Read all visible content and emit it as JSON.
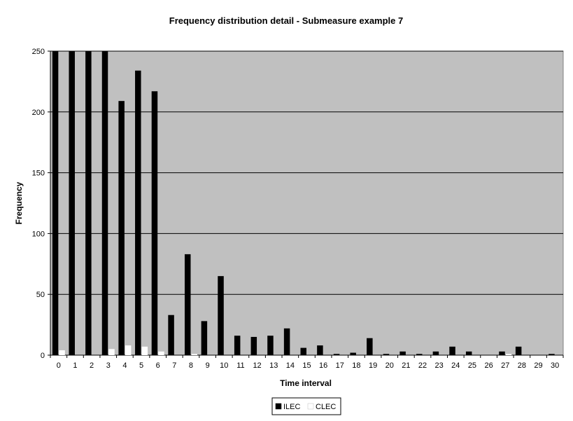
{
  "chart_data": {
    "type": "bar",
    "title": "Frequency distribution detail - Submeasure example 7",
    "xlabel": "Time interval",
    "ylabel": "Frequency",
    "ylim": [
      0,
      250
    ],
    "yticks": [
      0,
      50,
      100,
      150,
      200,
      250
    ],
    "grid": true,
    "legend_position": "bottom-center",
    "categories": [
      "0",
      "1",
      "2",
      "3",
      "4",
      "5",
      "6",
      "7",
      "8",
      "9",
      "10",
      "11",
      "12",
      "13",
      "14",
      "15",
      "16",
      "17",
      "18",
      "19",
      "20",
      "21",
      "22",
      "23",
      "24",
      "25",
      "26",
      "27",
      "28",
      "29",
      "30"
    ],
    "series": [
      {
        "name": "ILEC",
        "color": "#000000",
        "values": [
          251,
          251,
          251,
          251,
          209,
          234,
          217,
          33,
          83,
          28,
          65,
          16,
          15,
          16,
          22,
          6,
          8,
          1,
          2,
          14,
          1,
          3,
          1,
          3,
          7,
          3,
          0,
          3,
          7,
          0,
          1
        ]
      },
      {
        "name": "CLEC",
        "color": "#ffffff",
        "values": [
          4,
          0,
          0,
          5,
          8,
          7,
          3,
          0,
          1,
          0,
          0,
          0,
          0,
          0,
          0,
          0,
          0,
          0,
          0,
          0,
          0,
          0,
          0,
          0,
          0,
          0,
          0,
          1,
          0,
          0,
          0
        ]
      }
    ],
    "plot_background": "#c0c0c0"
  }
}
